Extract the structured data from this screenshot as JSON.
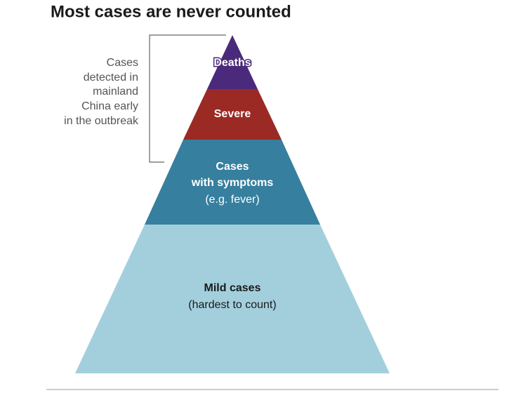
{
  "title": "Most cases are never counted",
  "annotation": [
    "Cases",
    "detected in",
    "mainland",
    "China early",
    "in the outbreak"
  ],
  "layers": [
    {
      "label": [
        "Deaths"
      ]
    },
    {
      "label": [
        "Severe"
      ]
    },
    {
      "label": [
        "Cases",
        "with symptoms",
        "(e.g. fever)"
      ]
    },
    {
      "label": [
        "Mild cases",
        "(hardest to count)"
      ]
    }
  ]
}
